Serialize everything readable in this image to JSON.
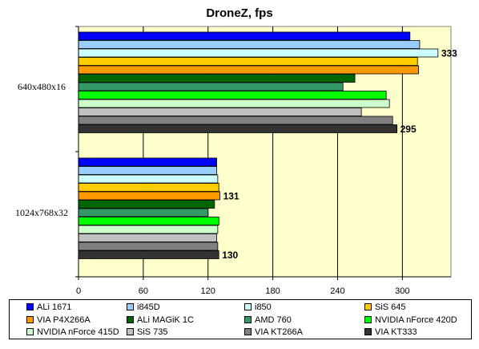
{
  "chart_data": {
    "type": "bar",
    "orientation": "horizontal",
    "title": "DroneZ, fps",
    "categories": [
      "640x480x16",
      "1024x768x32"
    ],
    "xlim": [
      0,
      345
    ],
    "xticks": [
      0,
      60,
      120,
      180,
      240,
      300
    ],
    "grid": true,
    "legend_position": "bottom",
    "plot_background": "#ffffcc",
    "series": [
      {
        "name": "ALi 1671",
        "color": "#0000ff",
        "values": [
          307,
          128
        ]
      },
      {
        "name": "i845D",
        "color": "#99ccff",
        "values": [
          316,
          128
        ]
      },
      {
        "name": "i850",
        "color": "#ccffff",
        "values": [
          333,
          129
        ]
      },
      {
        "name": "SiS 645",
        "color": "#ffcc00",
        "values": [
          314,
          130
        ]
      },
      {
        "name": "VIA P4X266A",
        "color": "#ff9900",
        "values": [
          315,
          131
        ]
      },
      {
        "name": "ALi MAGiK 1C",
        "color": "#006600",
        "values": [
          256,
          126
        ]
      },
      {
        "name": "AMD 760",
        "color": "#339966",
        "values": [
          245,
          120
        ]
      },
      {
        "name": "NVIDIA nForce 420D",
        "color": "#00ff00",
        "values": [
          285,
          130
        ]
      },
      {
        "name": "NVIDIA nForce 415D",
        "color": "#ccffcc",
        "values": [
          288,
          129
        ]
      },
      {
        "name": "SiS 735",
        "color": "#c0c0c0",
        "values": [
          262,
          128
        ]
      },
      {
        "name": "VIA KT266A",
        "color": "#808080",
        "values": [
          291,
          129
        ]
      },
      {
        "name": "VIA KT333",
        "color": "#333333",
        "values": [
          295,
          130
        ]
      }
    ],
    "data_labels": [
      {
        "series": "i850",
        "category": "640x480x16",
        "text": "333"
      },
      {
        "series": "VIA KT333",
        "category": "640x480x16",
        "text": "295"
      },
      {
        "series": "VIA P4X266A",
        "category": "1024x768x32",
        "text": "131"
      },
      {
        "series": "VIA KT333",
        "category": "1024x768x32",
        "text": "130"
      }
    ]
  }
}
